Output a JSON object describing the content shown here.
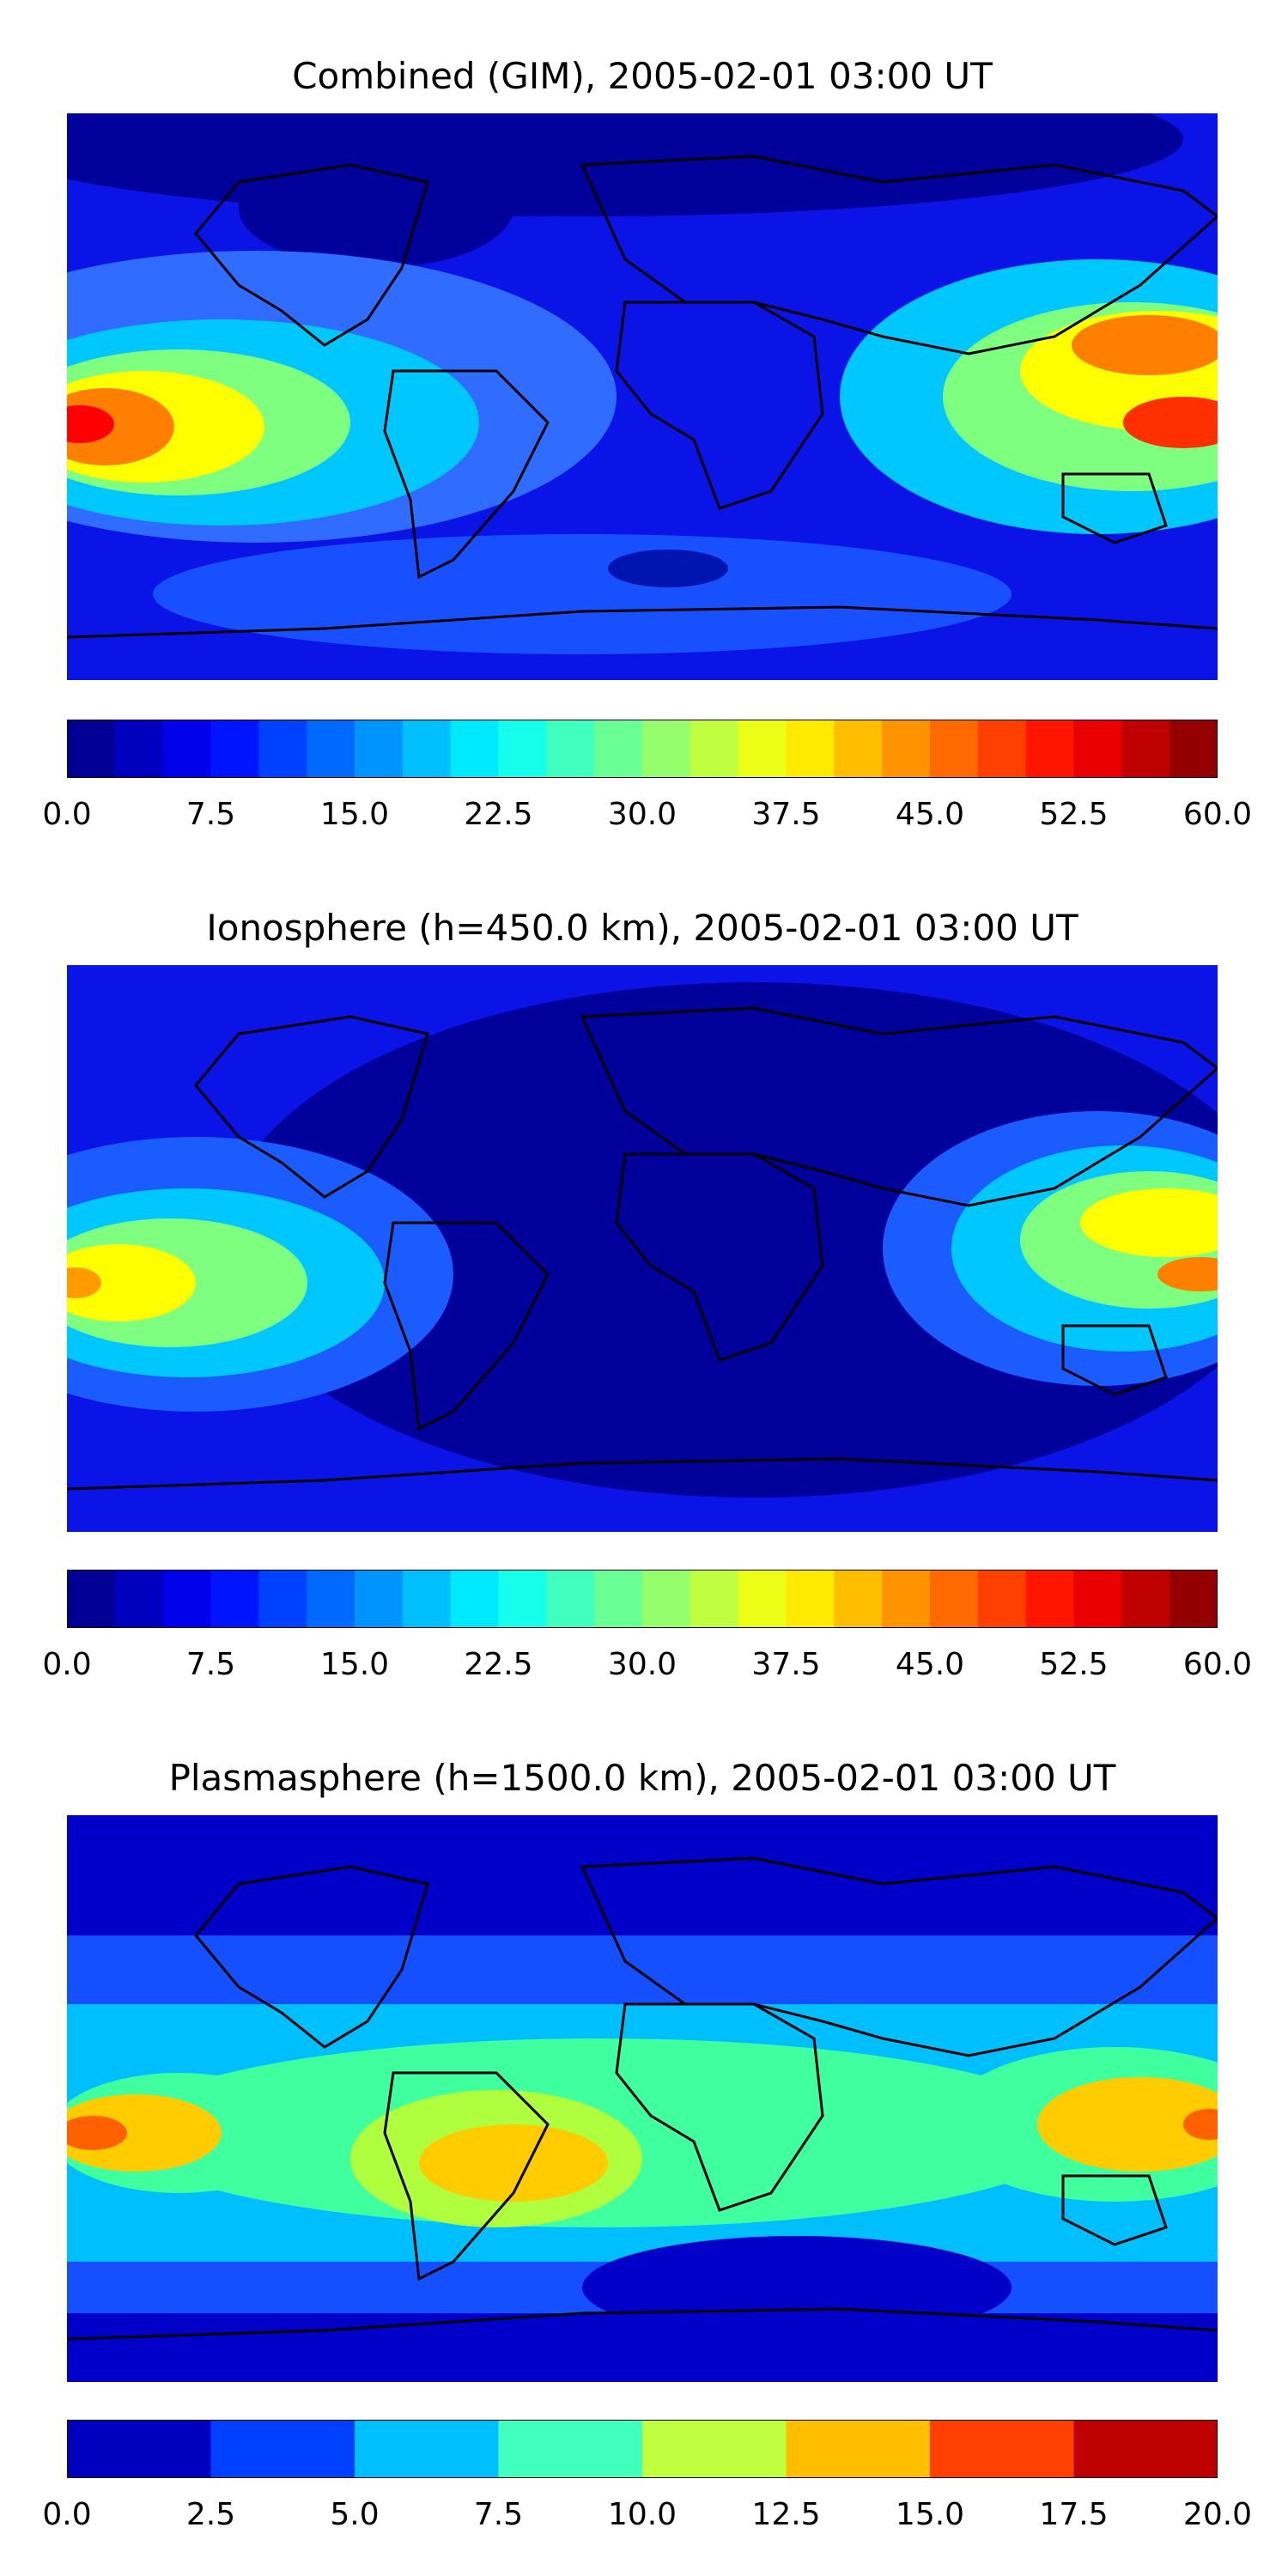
{
  "panels": [
    {
      "title": "Combined (GIM), 2005-02-01 03:00 UT",
      "colorbar": {
        "min": 0,
        "max": 60,
        "levels": 24,
        "ticks": [
          "0.0",
          "7.5",
          "15.0",
          "22.5",
          "30.0",
          "37.5",
          "45.0",
          "52.5",
          "60.0"
        ]
      }
    },
    {
      "title": "Ionosphere  (h=450.0 km), 2005-02-01 03:00 UT",
      "colorbar": {
        "min": 0,
        "max": 60,
        "levels": 24,
        "ticks": [
          "0.0",
          "7.5",
          "15.0",
          "22.5",
          "30.0",
          "37.5",
          "45.0",
          "52.5",
          "60.0"
        ]
      }
    },
    {
      "title": "Plasmasphere (h=1500.0 km), 2005-02-01 03:00 UT",
      "colorbar": {
        "min": 0,
        "max": 20,
        "levels": 8,
        "ticks": [
          "0.0",
          "2.5",
          "5.0",
          "7.5",
          "10.0",
          "12.5",
          "15.0",
          "17.5",
          "20.0"
        ]
      }
    }
  ],
  "colormap": "jet",
  "colors": {
    "jet_stops": [
      "#00007f",
      "#0000ff",
      "#007fff",
      "#00ffff",
      "#7fff7f",
      "#ffff00",
      "#ff7f00",
      "#ff0000",
      "#7f0000"
    ],
    "coastline": "#000000"
  }
}
